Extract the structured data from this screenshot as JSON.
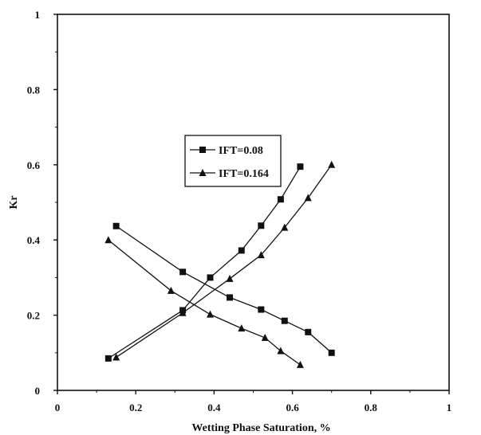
{
  "chart_data": {
    "type": "line",
    "title": "",
    "xlabel": "Wetting Phase Saturation, %",
    "ylabel": "Kr",
    "xlim": [
      0,
      1
    ],
    "ylim": [
      0,
      1
    ],
    "x_ticks": [
      "0",
      "0.2",
      "0.4",
      "0.6",
      "0.8",
      "1"
    ],
    "y_ticks": [
      "0",
      "0.2",
      "0.4",
      "0.6",
      "0.8",
      "1"
    ],
    "grid": false,
    "legend_position": "upper-center",
    "series": [
      {
        "name": "IFT=0.08",
        "marker": "square",
        "color": "#111111",
        "curves": [
          {
            "x": [
              0.13,
              0.32,
              0.39,
              0.47,
              0.52,
              0.57,
              0.62
            ],
            "y": [
              0.085,
              0.213,
              0.3,
              0.372,
              0.438,
              0.508,
              0.595
            ]
          },
          {
            "x": [
              0.15,
              0.32,
              0.44,
              0.52,
              0.58,
              0.64,
              0.7
            ],
            "y": [
              0.437,
              0.315,
              0.247,
              0.215,
              0.185,
              0.155,
              0.1
            ]
          }
        ]
      },
      {
        "name": "IFT=0.164",
        "marker": "triangle",
        "color": "#111111",
        "curves": [
          {
            "x": [
              0.15,
              0.32,
              0.44,
              0.52,
              0.58,
              0.64,
              0.7
            ],
            "y": [
              0.088,
              0.206,
              0.297,
              0.36,
              0.433,
              0.512,
              0.6
            ]
          },
          {
            "x": [
              0.13,
              0.29,
              0.39,
              0.47,
              0.53,
              0.57,
              0.62
            ],
            "y": [
              0.4,
              0.265,
              0.202,
              0.165,
              0.14,
              0.105,
              0.068
            ]
          }
        ]
      }
    ]
  }
}
